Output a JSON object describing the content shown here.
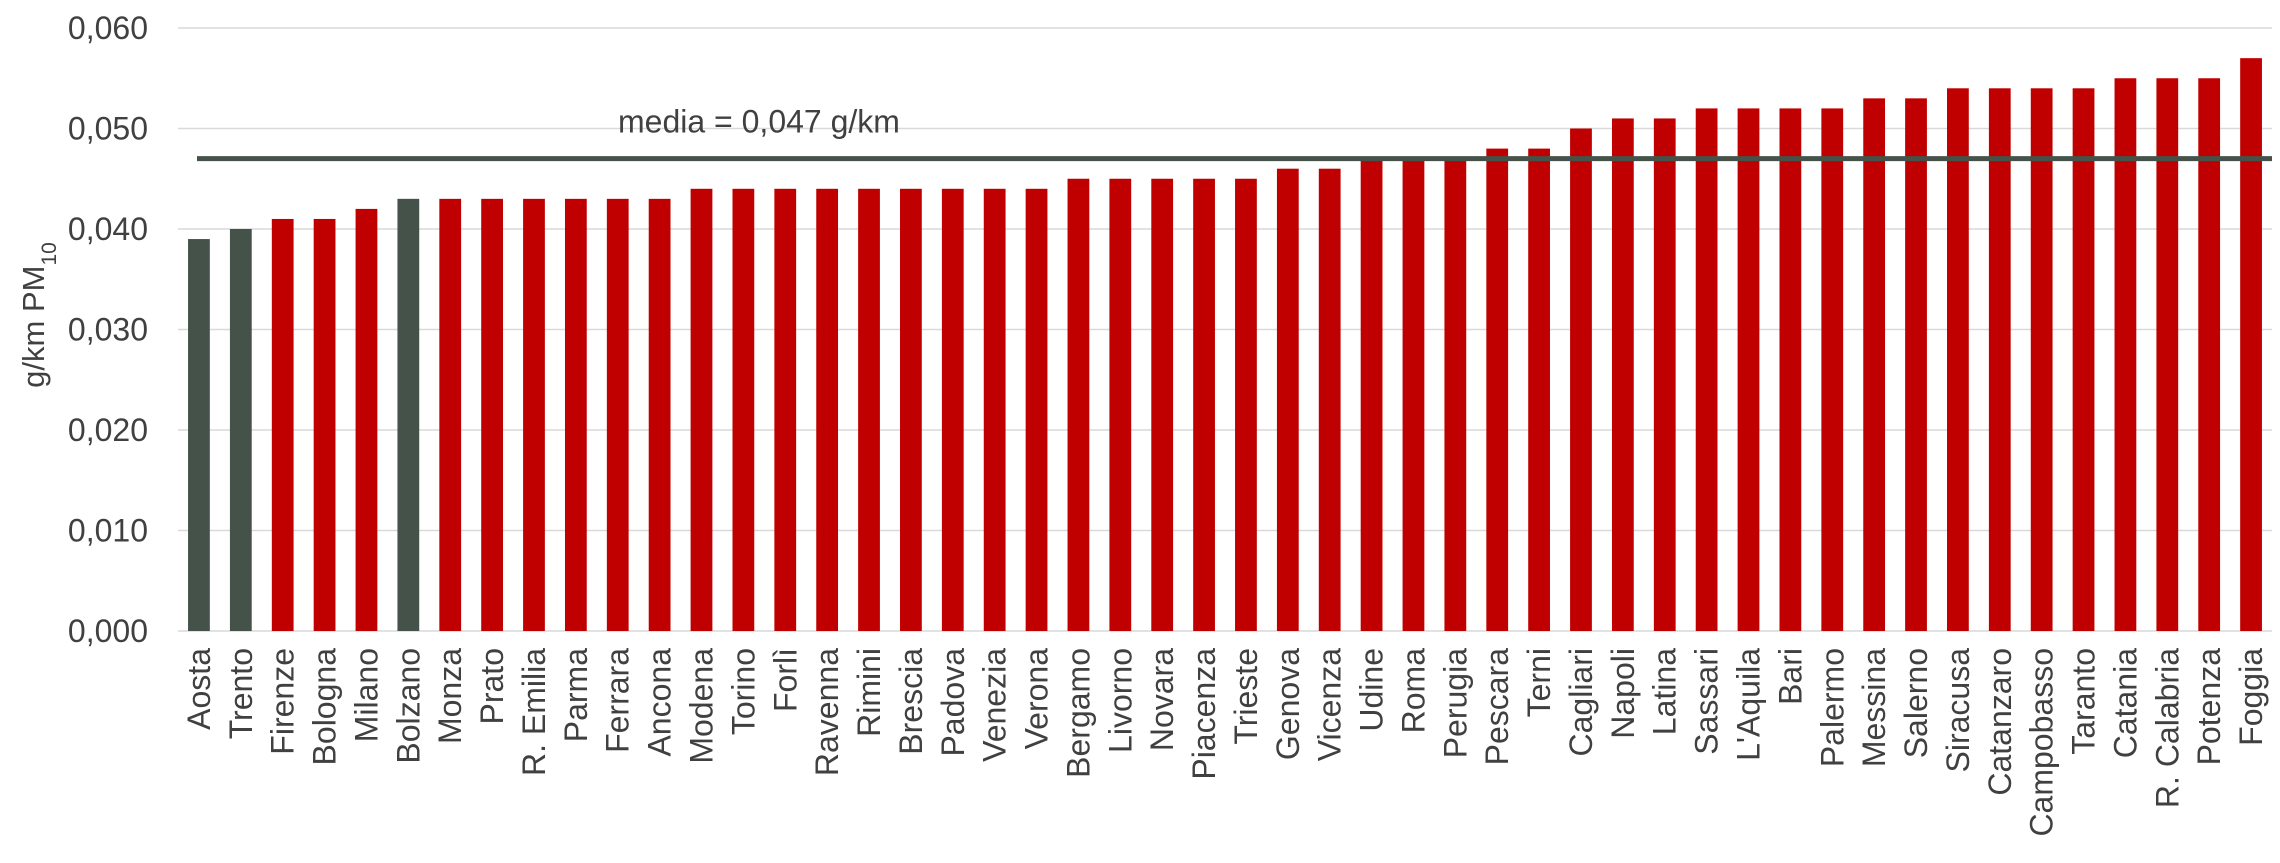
{
  "chart_data": {
    "type": "bar",
    "title": "",
    "xlabel": "",
    "ylabel": "g/km PM",
    "ylabel_sub": "10",
    "ylim": [
      0,
      0.06
    ],
    "yticks": [
      "0,000",
      "0,010",
      "0,020",
      "0,030",
      "0,040",
      "0,050",
      "0,060"
    ],
    "grid": true,
    "categories": [
      "Aosta",
      "Trento",
      "Firenze",
      "Bologna",
      "Milano",
      "Bolzano",
      "Monza",
      "Prato",
      "R. Emilia",
      "Parma",
      "Ferrara",
      "Ancona",
      "Modena",
      "Torino",
      "Forlì",
      "Ravenna",
      "Rimini",
      "Brescia",
      "Padova",
      "Venezia",
      "Verona",
      "Bergamo",
      "Livorno",
      "Novara",
      "Piacenza",
      "Trieste",
      "Genova",
      "Vicenza",
      "Udine",
      "Roma",
      "Perugia",
      "Pescara",
      "Terni",
      "Cagliari",
      "Napoli",
      "Latina",
      "Sassari",
      "L'Aquila",
      "Bari",
      "Palermo",
      "Messina",
      "Salerno",
      "Siracusa",
      "Catanzaro",
      "Campobasso",
      "Taranto",
      "Catania",
      "R. Calabria",
      "Potenza",
      "Foggia"
    ],
    "values": [
      0.039,
      0.04,
      0.041,
      0.041,
      0.042,
      0.043,
      0.043,
      0.043,
      0.043,
      0.043,
      0.043,
      0.043,
      0.044,
      0.044,
      0.044,
      0.044,
      0.044,
      0.044,
      0.044,
      0.044,
      0.044,
      0.045,
      0.045,
      0.045,
      0.045,
      0.045,
      0.046,
      0.046,
      0.047,
      0.047,
      0.047,
      0.048,
      0.048,
      0.05,
      0.051,
      0.051,
      0.052,
      0.052,
      0.052,
      0.052,
      0.053,
      0.053,
      0.054,
      0.054,
      0.054,
      0.054,
      0.055,
      0.055,
      0.055,
      0.057
    ],
    "highlighted": [
      "Aosta",
      "Trento",
      "Bolzano"
    ],
    "colors": {
      "bar": "#c00000",
      "highlight": "#44524a",
      "mean_line": "#44524a"
    },
    "mean_line": {
      "value": 0.047,
      "label": "media = 0,047 g/km"
    }
  }
}
